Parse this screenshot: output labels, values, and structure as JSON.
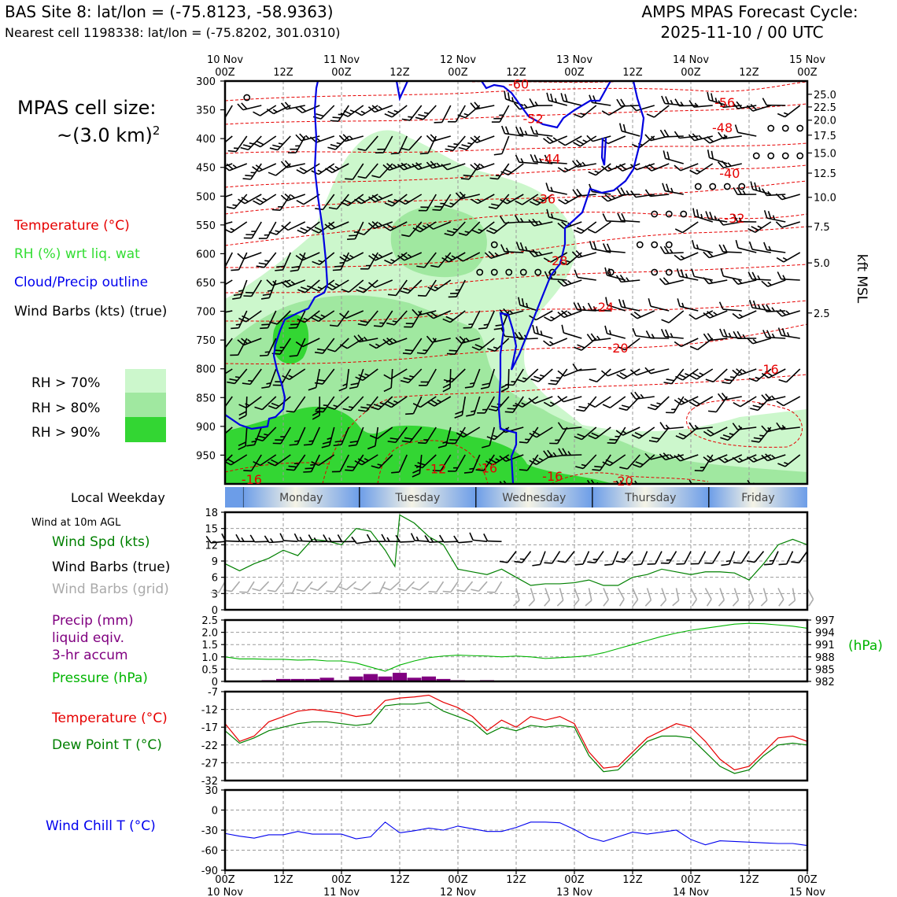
{
  "header": {
    "site_line": "BAS Site 8: lat/lon = (-75.8123, -58.9363)",
    "cell_line": "Nearest cell 1198338: lat/lon = (-75.8202, 301.0310)",
    "cycle_title": "AMPS MPAS Forecast Cycle:",
    "cycle_value": "2025-11-10 / 00 UTC"
  },
  "legend": {
    "cell_size_title": "MPAS cell size:",
    "cell_size_value": "~(3.0 km)",
    "cell_size_exp": "2",
    "temperature": "Temperature (°C)",
    "rh": "RH (%) wrt liq. wat",
    "cloud": "Cloud/Precip outline",
    "wind_barbs": "Wind Barbs (kts) (true)",
    "rh_levels": [
      "RH > 70%",
      "RH > 80%",
      "RH > 90%"
    ]
  },
  "colors": {
    "rh70": "#ccf7cc",
    "rh80": "#a0e8a0",
    "rh90": "#33d633",
    "temperature": "#e60000",
    "cloud": "#0000e0",
    "pressure": "#00b400",
    "precip": "#800080",
    "dewpoint": "#008000",
    "windchill": "#0000ee",
    "windspd": "#008000"
  },
  "time_axis": {
    "top_labels": [
      [
        "10 Nov",
        "00Z"
      ],
      [
        "",
        "12Z"
      ],
      [
        "11 Nov",
        "00Z"
      ],
      [
        "",
        "12Z"
      ],
      [
        "12 Nov",
        "00Z"
      ],
      [
        "",
        "12Z"
      ],
      [
        "13 Nov",
        "00Z"
      ],
      [
        "",
        "12Z"
      ],
      [
        "14 Nov",
        "00Z"
      ],
      [
        "",
        "12Z"
      ],
      [
        "15 Nov",
        "00Z"
      ]
    ],
    "hours": [
      0,
      12,
      24,
      36,
      48,
      60,
      72,
      84,
      96,
      108,
      120
    ]
  },
  "weekday_strip": {
    "label": "Local Weekday",
    "days": [
      "Monday",
      "Tuesday",
      "Wednesday",
      "Thursday",
      "Friday"
    ]
  },
  "chart_data": [
    {
      "type": "heatmap",
      "name": "cross-section",
      "ylabel_right": "kft MSL",
      "pressure_ticks": [
        300,
        350,
        400,
        450,
        500,
        550,
        600,
        650,
        700,
        750,
        800,
        850,
        900,
        950
      ],
      "ylim_hpa": [
        300,
        1000
      ],
      "height_ticks_kft": [
        "25.0",
        "22.5",
        "20.0",
        "17.5",
        "15.0",
        "12.5",
        "10.0",
        "7.5",
        "5.0",
        "2.5"
      ],
      "height_tick_hpa": [
        323,
        345,
        368,
        394,
        425,
        460,
        502,
        553,
        616,
        703
      ],
      "xlim_hours": [
        0,
        120
      ],
      "temperature_contour_labels": [
        {
          "text": "-60",
          "hour": 60.5,
          "hpa": 306
        },
        {
          "text": "-56",
          "hour": 103,
          "hpa": 338
        },
        {
          "text": "-52",
          "hour": 63.5,
          "hpa": 366
        },
        {
          "text": "-48",
          "hour": 102.5,
          "hpa": 382
        },
        {
          "text": "-44",
          "hour": 67,
          "hpa": 436
        },
        {
          "text": "-40",
          "hour": 104,
          "hpa": 461
        },
        {
          "text": "-36",
          "hour": 66,
          "hpa": 506
        },
        {
          "text": "-32",
          "hour": 105,
          "hpa": 539
        },
        {
          "text": "-28",
          "hour": 68.5,
          "hpa": 613
        },
        {
          "text": "-24",
          "hour": 78,
          "hpa": 694
        },
        {
          "text": "-20",
          "hour": 81,
          "hpa": 765
        },
        {
          "text": "-16",
          "hour": 112,
          "hpa": 802
        },
        {
          "text": "-16",
          "hour": 5.5,
          "hpa": 993
        },
        {
          "text": "-12",
          "hour": 43.5,
          "hpa": 975
        },
        {
          "text": "-16",
          "hour": 54,
          "hpa": 973
        },
        {
          "text": "-16",
          "hour": 67.5,
          "hpa": 988
        },
        {
          "text": "-20",
          "hour": 82,
          "hpa": 996
        }
      ]
    },
    {
      "type": "line",
      "name": "wind-10m",
      "panel_title": "Wind at 10m AGL",
      "labels": [
        "Wind Spd (kts)",
        "Wind Barbs (true)",
        "Wind Barbs (grid)"
      ],
      "ylim": [
        0,
        18
      ],
      "yticks": [
        0,
        3,
        6,
        9,
        12,
        15,
        18
      ],
      "x": [
        0,
        3,
        6,
        9,
        12,
        15,
        18,
        21,
        24,
        27,
        30,
        33,
        35,
        36,
        39,
        42,
        45,
        48,
        51,
        54,
        57,
        60,
        63,
        66,
        69,
        72,
        75,
        78,
        81,
        84,
        87,
        90,
        93,
        96,
        99,
        102,
        105,
        108,
        111,
        114,
        117,
        120
      ],
      "series": [
        {
          "name": "Wind Spd (kts)",
          "values": [
            8.5,
            7.2,
            8.5,
            9.5,
            11.0,
            10.0,
            13.0,
            12.7,
            12.0,
            15.0,
            14.5,
            11.0,
            8.0,
            17.5,
            16.0,
            13.5,
            12.0,
            7.5,
            7.0,
            6.5,
            7.5,
            6.0,
            4.5,
            4.8,
            4.8,
            5.0,
            5.5,
            4.5,
            4.5,
            6.0,
            6.5,
            7.5,
            7.0,
            6.5,
            7.0,
            7.0,
            6.8,
            5.5,
            8.5,
            12.0,
            13.0,
            12.0
          ]
        }
      ]
    },
    {
      "type": "bar",
      "name": "precip-pressure",
      "labels": [
        "Precip (mm)",
        "liquid eqiv.",
        "3-hr accum",
        "Pressure (hPa)"
      ],
      "unit_right": "(hPa)",
      "precip_ylim": [
        0,
        2.5
      ],
      "precip_yticks": [
        "2.5",
        "2.0",
        "1.5",
        "1.0",
        "0.5",
        "0"
      ],
      "precip_x": [
        9,
        12,
        15,
        18,
        21,
        24,
        27,
        30,
        33,
        36,
        39,
        42,
        45,
        48,
        51,
        54
      ],
      "precip_values": [
        0.05,
        0.1,
        0.1,
        0.1,
        0.15,
        0.05,
        0.2,
        0.3,
        0.2,
        0.35,
        0.15,
        0.2,
        0.1,
        0.05,
        0.02,
        0.05
      ],
      "pressure_ylim": [
        982,
        997
      ],
      "pressure_yticks": [
        "997",
        "994",
        "991",
        "988",
        "985",
        "982"
      ],
      "pressure_x": [
        0,
        3,
        6,
        9,
        12,
        15,
        18,
        21,
        24,
        27,
        30,
        33,
        36,
        39,
        42,
        45,
        48,
        51,
        54,
        57,
        60,
        63,
        66,
        69,
        72,
        75,
        78,
        81,
        84,
        87,
        90,
        93,
        96,
        99,
        102,
        105,
        108,
        111,
        114,
        117,
        120
      ],
      "pressure_values": [
        988.0,
        987.5,
        987.5,
        987.4,
        987.4,
        987.2,
        987.3,
        987.0,
        987.0,
        986.5,
        985.5,
        984.5,
        986.0,
        987.0,
        987.8,
        988.2,
        988.4,
        988.3,
        988.2,
        988.0,
        988.2,
        988.0,
        987.6,
        987.8,
        988.0,
        988.3,
        989.0,
        990.0,
        991.0,
        992.0,
        993.0,
        993.8,
        994.5,
        995.0,
        995.5,
        996.0,
        996.2,
        996.1,
        995.8,
        995.5,
        995.0
      ]
    },
    {
      "type": "line",
      "name": "temperature-dewpoint",
      "labels": [
        "Temperature (°C)",
        "Dew Point T (°C)"
      ],
      "ylim": [
        -32,
        -7
      ],
      "yticks": [
        -7,
        -12,
        -17,
        -22,
        -27,
        -32
      ],
      "x": [
        0,
        3,
        6,
        9,
        12,
        15,
        18,
        21,
        24,
        27,
        30,
        33,
        36,
        39,
        42,
        45,
        48,
        51,
        54,
        57,
        60,
        63,
        66,
        69,
        72,
        75,
        78,
        81,
        84,
        87,
        90,
        93,
        96,
        99,
        102,
        105,
        108,
        111,
        114,
        117,
        120
      ],
      "series": [
        {
          "name": "Temperature (°C)",
          "values": [
            -16.0,
            -21.0,
            -19.5,
            -15.5,
            -14.0,
            -12.5,
            -12.0,
            -12.5,
            -13.0,
            -14.0,
            -13.5,
            -9.5,
            -8.8,
            -8.5,
            -8.0,
            -10.0,
            -11.5,
            -14.0,
            -18.0,
            -15.0,
            -17.0,
            -14.0,
            -15.0,
            -14.0,
            -16.0,
            -24.0,
            -28.5,
            -28.0,
            -24.0,
            -20.0,
            -18.0,
            -16.0,
            -17.0,
            -21.0,
            -26.0,
            -29.0,
            -28.0,
            -24.0,
            -20.0,
            -19.5,
            -21.0
          ]
        },
        {
          "name": "Dew Point T (°C)",
          "values": [
            -18.0,
            -21.5,
            -20.0,
            -18.0,
            -17.0,
            -16.0,
            -15.5,
            -15.5,
            -16.0,
            -16.5,
            -16.0,
            -11.0,
            -10.5,
            -10.5,
            -10.0,
            -12.5,
            -14.0,
            -15.5,
            -19.0,
            -17.0,
            -18.0,
            -16.5,
            -17.0,
            -16.5,
            -17.0,
            -25.0,
            -29.5,
            -29.0,
            -25.0,
            -21.0,
            -19.5,
            -19.5,
            -20.0,
            -24.0,
            -28.0,
            -30.0,
            -29.0,
            -25.0,
            -22.0,
            -21.5,
            -22.0
          ]
        }
      ]
    },
    {
      "type": "line",
      "name": "wind-chill",
      "labels": [
        "Wind Chill T (°C)"
      ],
      "ylim": [
        -90,
        30
      ],
      "yticks": [
        30,
        0,
        -30,
        -60,
        -90
      ],
      "x": [
        0,
        3,
        6,
        9,
        12,
        15,
        18,
        21,
        24,
        27,
        30,
        33,
        36,
        39,
        42,
        45,
        48,
        51,
        54,
        57,
        60,
        63,
        66,
        69,
        72,
        75,
        78,
        81,
        84,
        87,
        90,
        93,
        96,
        99,
        102,
        105,
        108,
        111,
        114,
        117,
        120
      ],
      "series": [
        {
          "name": "Wind Chill T (°C)",
          "values": [
            -35,
            -39,
            -42,
            -37,
            -37,
            -32,
            -36,
            -36,
            -36,
            -43,
            -40,
            -18,
            -34,
            -31,
            -27,
            -30,
            -24,
            -28,
            -32,
            -32,
            -26,
            -18,
            -18,
            -19,
            -29,
            -41,
            -47,
            -40,
            -33,
            -36,
            -33,
            -30,
            -44,
            -52,
            -46,
            -47,
            -48,
            -49,
            -50,
            -50,
            -53
          ]
        }
      ]
    }
  ]
}
